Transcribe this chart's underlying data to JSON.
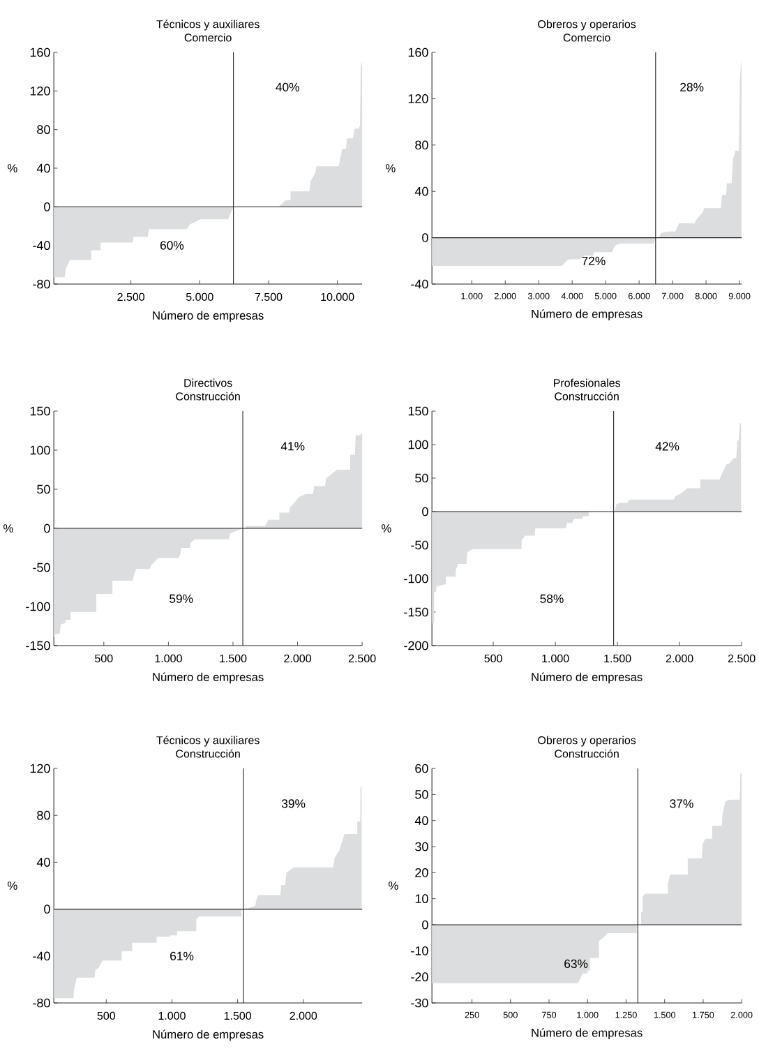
{
  "chart_data": [
    {
      "type": "area",
      "title": "Técnicos y auxiliares",
      "subtitle": "Comercio",
      "xlabel": "Número de empresas",
      "ylabel": "%",
      "color": "#dcddde",
      "x": [
        -300,
        94,
        150,
        290,
        1060,
        1060,
        1400,
        1400,
        2560,
        2600,
        3115,
        3150,
        4530,
        4650,
        5040,
        6030,
        6200,
        6224,
        7870,
        8125,
        8300,
        8300,
        8980,
        9030,
        9195,
        9240,
        10050,
        10100,
        10180,
        10310,
        10350,
        10570,
        10620,
        10780,
        10820,
        10850,
        10900
      ],
      "values": [
        -73,
        -73,
        -63,
        -55,
        -55,
        -45,
        -45,
        -37,
        -37,
        -31,
        -31,
        -23,
        -23,
        -18,
        -13,
        -13,
        -2,
        0,
        0,
        7,
        7,
        16,
        16,
        27,
        35,
        42,
        42,
        50,
        60,
        60,
        71,
        71,
        81,
        81,
        84,
        146,
        150
      ],
      "xlim": [
        -300,
        10900
      ],
      "ylim": [
        -80,
        160
      ],
      "xticks": [
        {
          "value": 2500,
          "label": "2.500"
        },
        {
          "value": 5000,
          "label": "5.000"
        },
        {
          "value": 7500,
          "label": "7.500"
        },
        {
          "value": 10000,
          "label": "10.000"
        }
      ],
      "yticks": [
        -80,
        -40,
        0,
        40,
        80,
        120,
        160
      ],
      "ref_lines": [
        {
          "axis": "x",
          "value": 6224,
          "color": "#231f20"
        },
        {
          "axis": "y",
          "value": 0,
          "color": "#231f20"
        }
      ],
      "annotations": [
        "40%",
        "60%"
      ]
    },
    {
      "type": "area",
      "title": "Obreros y operarios",
      "subtitle": "Comercio",
      "xlabel": "Número de empresas",
      "ylabel": "%",
      "color": "#dcddde",
      "x": [
        -190,
        3693,
        3871,
        3943,
        4229,
        4371,
        4621,
        4657,
        5193,
        5229,
        5300,
        5443,
        6443,
        6493,
        6586,
        6657,
        6836,
        7086,
        7121,
        7193,
        7657,
        7729,
        7907,
        7943,
        8443,
        8479,
        8600,
        8621,
        8764,
        8800,
        8871,
        8979,
        9014,
        9060
      ],
      "values": [
        -24.3,
        -24.3,
        -19,
        -18.6,
        -18.6,
        -15.5,
        -15.5,
        -12.4,
        -12.4,
        -9.6,
        -6.5,
        -5,
        -5,
        0,
        0,
        4,
        5.4,
        5.4,
        8,
        12.4,
        12.4,
        16.5,
        22,
        25.5,
        25.5,
        37,
        37,
        47,
        47,
        67,
        75,
        75,
        140,
        154
      ],
      "xlim": [
        -190,
        9064
      ],
      "ylim": [
        -40,
        160
      ],
      "xticks": [
        {
          "value": 1000,
          "label": "1.000"
        },
        {
          "value": 2000,
          "label": "2.000"
        },
        {
          "value": 3000,
          "label": "3.000"
        },
        {
          "value": 4000,
          "label": "4.000"
        },
        {
          "value": 5000,
          "label": "5.000"
        },
        {
          "value": 6000,
          "label": "6.000"
        },
        {
          "value": 7000,
          "label": "7.000"
        },
        {
          "value": 8000,
          "label": "8.000"
        },
        {
          "value": 9000,
          "label": "9.000"
        }
      ],
      "yticks": [
        -40,
        0,
        40,
        80,
        120,
        160
      ],
      "ref_lines": [
        {
          "axis": "x",
          "value": 6493,
          "color": "#231f20"
        },
        {
          "axis": "y",
          "value": 0,
          "color": "#231f20"
        }
      ],
      "annotations": [
        "28%",
        "72%"
      ]
    },
    {
      "type": "area",
      "title": "Directivos",
      "subtitle": "Construcción",
      "xlabel": "Número de empresas",
      "ylabel": "%",
      "color": "#dcddde",
      "x": [
        113,
        124,
        158,
        167,
        204,
        204,
        242,
        242,
        442,
        442,
        567,
        567,
        725,
        734,
        749,
        855,
        864,
        920,
        1078,
        1088,
        1101,
        1166,
        1171,
        1199,
        1469,
        1478,
        1515,
        1576,
        1599,
        1599,
        1747,
        1775,
        1859,
        1859,
        1933,
        1943,
        1971,
        2008,
        2063,
        2119,
        2129,
        2212,
        2222,
        2259,
        2305,
        2407,
        2407,
        2444,
        2450,
        2482,
        2500
      ],
      "values": [
        -140,
        -135,
        -135,
        -123,
        -121,
        -117,
        -117,
        -107,
        -107,
        -84,
        -84,
        -67,
        -67,
        -60,
        -52,
        -52,
        -48,
        -38,
        -38,
        -35,
        -25,
        -25,
        -19,
        -14,
        -14,
        -7,
        -4,
        0,
        0,
        3,
        3,
        11,
        11,
        20,
        20,
        27,
        32,
        40,
        44,
        44,
        54,
        54,
        64,
        69,
        75,
        75,
        94,
        94,
        119,
        119,
        122
      ],
      "xlim": [
        113,
        2500
      ],
      "ylim": [
        -150,
        150
      ],
      "xticks": [
        500,
        {
          "value": 1000,
          "label": "1.000"
        },
        {
          "value": 1500,
          "label": "1.500"
        },
        {
          "value": 2000,
          "label": "2.000"
        },
        {
          "value": 2500,
          "label": "2.500"
        }
      ],
      "yticks": [
        -150,
        -100,
        -50,
        0,
        50,
        100,
        150
      ],
      "ref_lines": [
        {
          "axis": "x",
          "value": 1576,
          "color": "#231f20"
        },
        {
          "axis": "y",
          "value": 0,
          "color": "#231f20"
        }
      ],
      "annotations": [
        "41%",
        "59%"
      ]
    },
    {
      "type": "area",
      "title": "Profesionales",
      "subtitle": "Construcción",
      "xlabel": "Número de empresas",
      "ylabel": "%",
      "color": "#dcddde",
      "x": [
        6,
        23,
        23,
        39,
        42,
        120,
        120,
        197,
        197,
        216,
        284,
        290,
        332,
        728,
        728,
        757,
        834,
        838,
        1085,
        1095,
        1134,
        1153,
        1220,
        1220,
        1269,
        1269,
        1481,
        1481,
        1491,
        1520,
        1578,
        1597,
        1954,
        1964,
        2012,
        2064,
        2167,
        2167,
        2321,
        2340,
        2379,
        2398,
        2437,
        2456,
        2466,
        2476,
        2486,
        2495
      ],
      "values": [
        -167,
        -167,
        -120,
        -120,
        -112,
        -108,
        -97,
        -97,
        -88,
        -78,
        -78,
        -61,
        -56,
        -56,
        -43,
        -36,
        -36,
        -25,
        -25,
        -17,
        -17,
        -11,
        -11,
        -7,
        -7,
        0,
        0,
        2,
        11,
        13,
        13,
        18,
        18,
        23,
        27,
        35,
        35,
        48,
        48,
        56,
        71,
        71,
        80,
        80,
        106,
        106,
        132,
        132
      ],
      "xlim": [
        6,
        2500
      ],
      "ylim": [
        -200,
        150
      ],
      "xticks": [
        500,
        {
          "value": 1000,
          "label": "1.000"
        },
        {
          "value": 1500,
          "label": "1.500"
        },
        {
          "value": 2000,
          "label": "2.000"
        },
        {
          "value": 2500,
          "label": "2.500"
        }
      ],
      "yticks": [
        -200,
        -150,
        -100,
        -50,
        0,
        50,
        100,
        150
      ],
      "ref_lines": [
        {
          "axis": "x",
          "value": 1469,
          "color": "#231f20"
        },
        {
          "axis": "y",
          "value": 0,
          "color": "#231f20"
        }
      ],
      "annotations": [
        "42%",
        "58%"
      ]
    },
    {
      "type": "area",
      "title": "Técnicos y auxiliares",
      "subtitle": "Construcción",
      "xlabel": "Número de empresas",
      "ylabel": "%",
      "color": "#dcddde",
      "x": [
        101,
        252,
        252,
        276,
        412,
        417,
        441,
        472,
        618,
        618,
        697,
        697,
        884,
        884,
        984,
        984,
        1039,
        1039,
        1185,
        1185,
        1204,
        1529,
        1529,
        1551,
        1634,
        1643,
        1656,
        1826,
        1831,
        1862,
        1872,
        1926,
        2228,
        2238,
        2274,
        2314,
        2411,
        2411,
        2433,
        2435,
        2444
      ],
      "values": [
        -76,
        -76,
        -70.6,
        -58.4,
        -58.4,
        -52,
        -50,
        -43.8,
        -43.8,
        -36,
        -36,
        -28.7,
        -28.7,
        -23.5,
        -23.5,
        -22.4,
        -22.4,
        -18.8,
        -18.8,
        -8.8,
        -6.3,
        -6.3,
        0,
        0,
        2.7,
        8,
        12,
        12,
        20.5,
        20.5,
        31,
        35.6,
        35.6,
        43.6,
        50,
        64,
        64,
        74.6,
        74.6,
        104,
        104
      ],
      "xlim": [
        101,
        2448
      ],
      "ylim": [
        -80,
        120
      ],
      "xticks": [
        500,
        {
          "value": 1000,
          "label": "1.000"
        },
        {
          "value": 1500,
          "label": "1.500"
        },
        {
          "value": 2000,
          "label": "2.000"
        }
      ],
      "yticks": [
        -80,
        -40,
        0,
        40,
        80,
        120
      ],
      "ref_lines": [
        {
          "axis": "x",
          "value": 1544,
          "color": "#231f20"
        },
        {
          "axis": "y",
          "value": 0,
          "color": "#231f20"
        }
      ],
      "annotations": [
        "39%",
        "61%"
      ]
    },
    {
      "type": "area",
      "title": "Obreros y operarios",
      "subtitle": "Construcción",
      "xlabel": "Número de empresas",
      "ylabel": "%",
      "color": "#dcddde",
      "x": [
        -10,
        938,
        969,
        1000,
        1000,
        1015,
        1015,
        1074,
        1074,
        1101,
        1132,
        1319,
        1319,
        1347,
        1347,
        1358,
        1358,
        1373,
        1521,
        1521,
        1536,
        1650,
        1650,
        1742,
        1746,
        1765,
        1809,
        1809,
        1871,
        1874,
        1894,
        1925,
        1987,
        1992,
        2000
      ],
      "values": [
        -22.4,
        -22.4,
        -18.7,
        -18.7,
        -17.6,
        -17.6,
        -12.7,
        -12.7,
        -6.2,
        -5,
        -3.2,
        -3.2,
        0,
        0,
        4.9,
        4.9,
        10.9,
        11.9,
        11.9,
        15.6,
        19.3,
        19.3,
        25.5,
        25.5,
        31,
        33,
        33,
        38,
        38,
        41.7,
        47.5,
        48,
        48,
        58.3,
        58.3
      ],
      "xlim": [
        -10,
        2000
      ],
      "ylim": [
        -30,
        60
      ],
      "xticks": [
        250,
        500,
        750,
        {
          "value": 1000,
          "label": "1.000"
        },
        {
          "value": 1250,
          "label": "1.250"
        },
        {
          "value": 1500,
          "label": "1.500"
        },
        {
          "value": 1750,
          "label": "1.750"
        },
        {
          "value": 2000,
          "label": "2.000"
        }
      ],
      "yticks": [
        -30,
        -20,
        -10,
        0,
        10,
        20,
        30,
        40,
        50,
        60
      ],
      "ref_lines": [
        {
          "axis": "x",
          "value": 1326,
          "color": "#231f20"
        },
        {
          "axis": "y",
          "value": 0,
          "color": "#231f20"
        }
      ],
      "annotations": [
        "37%",
        "63%"
      ]
    }
  ]
}
